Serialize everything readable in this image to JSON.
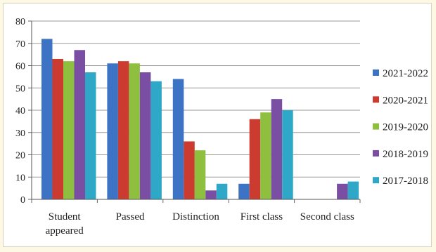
{
  "chart_data": {
    "type": "bar",
    "categories": [
      "Student appeared",
      "Passed",
      "Distinction",
      "First class",
      "Second class"
    ],
    "series": [
      {
        "name": "2021-2022",
        "color": "#3d73c5",
        "values": [
          72,
          61,
          54,
          7,
          0
        ]
      },
      {
        "name": "2020-2021",
        "color": "#cc3b30",
        "values": [
          63,
          62,
          26,
          36,
          0
        ]
      },
      {
        "name": "2019-2020",
        "color": "#8fbf3f",
        "values": [
          62,
          61,
          22,
          39,
          0
        ]
      },
      {
        "name": "2018-2019",
        "color": "#7a4ea3",
        "values": [
          67,
          57,
          4,
          45,
          7
        ]
      },
      {
        "name": "2017-2018",
        "color": "#2fa8c8",
        "values": [
          57,
          53,
          7,
          40,
          8
        ]
      }
    ],
    "ylim": [
      0,
      80
    ],
    "yticks": [
      0,
      10,
      20,
      30,
      40,
      50,
      60,
      70,
      80
    ],
    "grid": true,
    "legend": "right"
  }
}
